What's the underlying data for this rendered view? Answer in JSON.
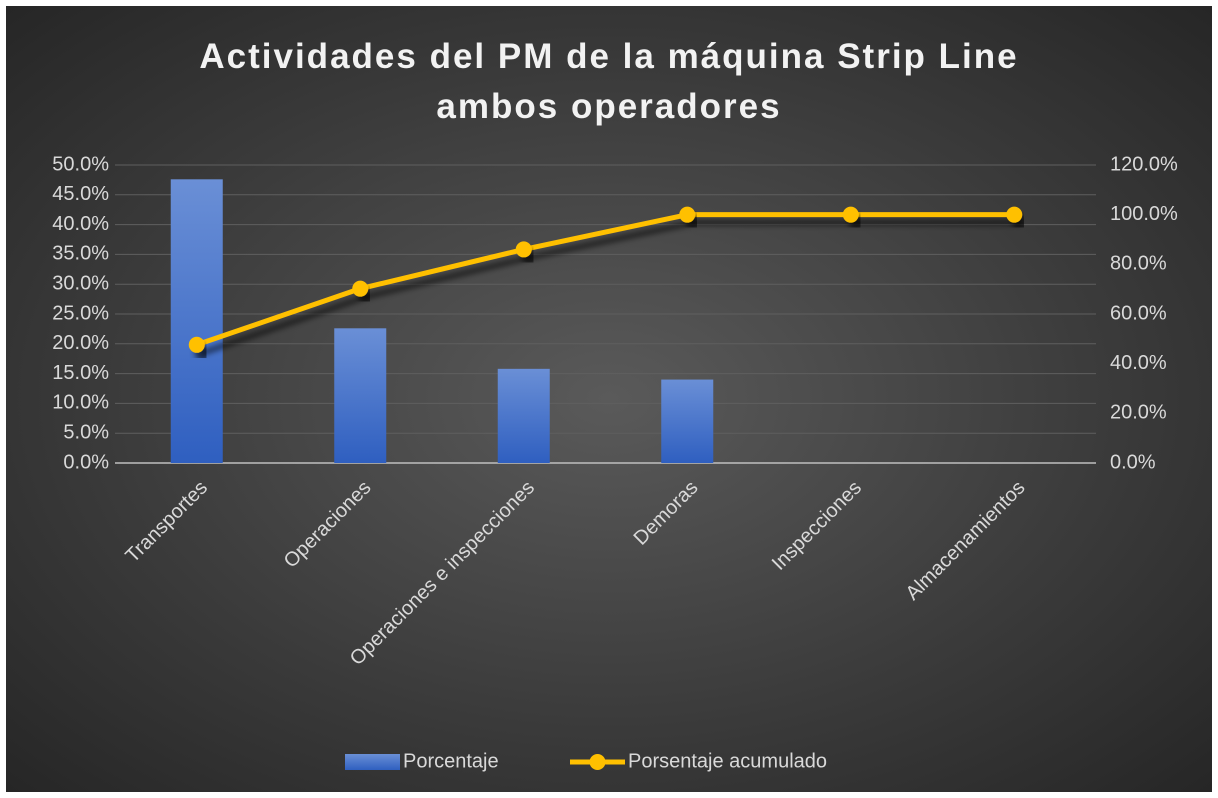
{
  "chart_data": {
    "type": "bar",
    "title": "Actividades del PM de la máquina Strip Line ambos operadores",
    "categories": [
      "Transportes",
      "Operaciones",
      "Operaciones e inspecciones",
      "Demoras",
      "Inspecciones",
      "Almacenamientos"
    ],
    "series": [
      {
        "name": "Porcentaje",
        "type": "bar",
        "color": "#4472c4",
        "values": [
          47.6,
          22.6,
          15.8,
          14.0,
          0,
          0
        ]
      },
      {
        "name": "Porsentaje acumulado",
        "type": "line",
        "axis": "y2",
        "color": "#ffc000",
        "values": [
          47.6,
          70.2,
          86.0,
          100,
          100,
          100
        ]
      }
    ],
    "ylim": [
      0,
      50
    ],
    "yticks": [
      {
        "value": 0,
        "label": "0.0%"
      },
      {
        "value": 5,
        "label": "5.0%"
      },
      {
        "value": 10,
        "label": "10.0%"
      },
      {
        "value": 15,
        "label": "15.0%"
      },
      {
        "value": 20,
        "label": "20.0%"
      },
      {
        "value": 25,
        "label": "25.0%"
      },
      {
        "value": 30,
        "label": "30.0%"
      },
      {
        "value": 35,
        "label": "35.0%"
      },
      {
        "value": 40,
        "label": "40.0%"
      },
      {
        "value": 45,
        "label": "45.0%"
      },
      {
        "value": 50,
        "label": "50.0%"
      }
    ],
    "y2lim": [
      0,
      120
    ],
    "y2ticks": [
      {
        "value": 0,
        "label": "0.0%"
      },
      {
        "value": 20,
        "label": "20.0%"
      },
      {
        "value": 40,
        "label": "40.0%"
      },
      {
        "value": 60,
        "label": "60.0%"
      },
      {
        "value": 80,
        "label": "80.0%"
      },
      {
        "value": 100,
        "label": "100.0%"
      },
      {
        "value": 120,
        "label": "120.0%"
      }
    ],
    "grid": true,
    "legend": "bottom"
  }
}
